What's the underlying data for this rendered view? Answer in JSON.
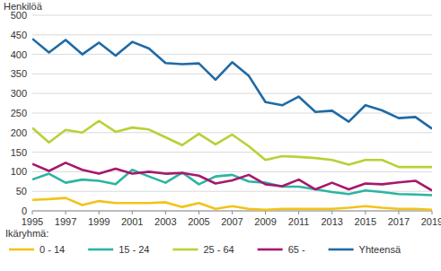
{
  "chart_data": {
    "type": "line",
    "y_label": "Henkilöä",
    "legend_title": "Ikäryhmä:",
    "legend": "bottom",
    "grid": true,
    "x": [
      1995,
      1996,
      1997,
      1998,
      1999,
      2000,
      2001,
      2002,
      2003,
      2004,
      2005,
      2006,
      2007,
      2008,
      2009,
      2010,
      2011,
      2012,
      2013,
      2014,
      2015,
      2016,
      2017,
      2018,
      2019
    ],
    "xlim": [
      1995,
      2019
    ],
    "xticks": [
      1995,
      1997,
      1999,
      2001,
      2003,
      2005,
      2007,
      2009,
      2011,
      2013,
      2015,
      2017,
      2019
    ],
    "ylim": [
      0,
      500
    ],
    "yticks": [
      0,
      50,
      100,
      150,
      200,
      250,
      300,
      350,
      400,
      450,
      500
    ],
    "series": [
      {
        "name": "0 - 14",
        "color": "#f2c31a",
        "values": [
          28,
          30,
          33,
          15,
          25,
          20,
          20,
          20,
          22,
          10,
          20,
          5,
          12,
          5,
          3,
          5,
          5,
          5,
          5,
          8,
          12,
          8,
          5,
          5,
          3
        ]
      },
      {
        "name": "15 - 24",
        "color": "#2bb5a2",
        "values": [
          80,
          95,
          72,
          80,
          77,
          68,
          105,
          88,
          72,
          98,
          68,
          88,
          92,
          75,
          72,
          62,
          62,
          55,
          48,
          43,
          52,
          48,
          43,
          42,
          40
        ]
      },
      {
        "name": "25 - 64",
        "color": "#b6d236",
        "values": [
          212,
          175,
          207,
          200,
          230,
          202,
          213,
          208,
          188,
          168,
          197,
          170,
          195,
          165,
          130,
          140,
          138,
          135,
          130,
          118,
          130,
          130,
          112,
          112,
          112
        ]
      },
      {
        "name": "65 -",
        "color": "#a6186f",
        "values": [
          120,
          102,
          123,
          105,
          95,
          108,
          95,
          100,
          95,
          97,
          90,
          70,
          78,
          92,
          68,
          63,
          80,
          55,
          72,
          55,
          70,
          68,
          73,
          77,
          52
        ]
      },
      {
        "name": "Yhteensä",
        "color": "#1f6aa5",
        "values": [
          440,
          405,
          437,
          400,
          430,
          397,
          432,
          415,
          378,
          375,
          377,
          335,
          380,
          345,
          278,
          270,
          292,
          253,
          256,
          228,
          270,
          257,
          237,
          240,
          210
        ]
      }
    ]
  }
}
